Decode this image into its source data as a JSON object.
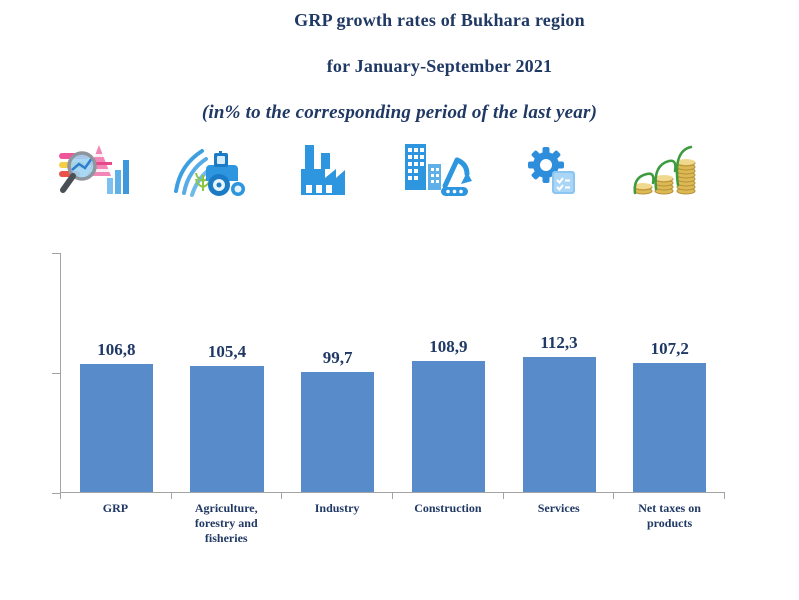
{
  "title": {
    "line1": "GRP growth rates of Bukhara region",
    "line2": "for January-September 2021",
    "line3": "(in% to the corresponding period of the last year)"
  },
  "icons": [
    "analytics-magnifier-icon",
    "agriculture-tractor-icon",
    "industry-factory-icon",
    "construction-excavator-icon",
    "services-gear-icon",
    "taxes-coins-icon"
  ],
  "colors": {
    "title_text": "#1F3864",
    "bar_fill": "#588BCA",
    "axis_line": "#A3A3A3",
    "icon_blue": "#2E96DF"
  },
  "chart_data": {
    "type": "bar",
    "title": "GRP growth rates of Bukhara region for January-September 2021 (in% to the corresponding period of the last year)",
    "categories": [
      "GRP",
      "Agriculture, forestry and fisheries",
      "Industry",
      "Construction",
      "Services",
      "Net taxes on products"
    ],
    "values": [
      106.8,
      105.4,
      99.7,
      108.9,
      112.3,
      107.2
    ],
    "value_labels": [
      "106,8",
      "105,4",
      "99,7",
      "108,9",
      "112,3",
      "107,2"
    ],
    "xlabel": "",
    "ylabel": "",
    "ylim": [
      0,
      200
    ],
    "yticks": [
      0,
      100,
      200
    ],
    "ytick_labels_visible": false,
    "grid": false,
    "legend": false,
    "bar_color": "#588BCA",
    "value_label_color": "#1F3864"
  }
}
